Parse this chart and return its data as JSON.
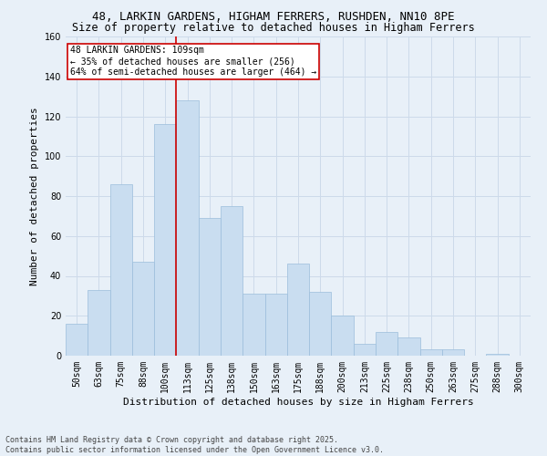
{
  "title_line1": "48, LARKIN GARDENS, HIGHAM FERRERS, RUSHDEN, NN10 8PE",
  "title_line2": "Size of property relative to detached houses in Higham Ferrers",
  "xlabel": "Distribution of detached houses by size in Higham Ferrers",
  "ylabel": "Number of detached properties",
  "categories": [
    "50sqm",
    "63sqm",
    "75sqm",
    "88sqm",
    "100sqm",
    "113sqm",
    "125sqm",
    "138sqm",
    "150sqm",
    "163sqm",
    "175sqm",
    "188sqm",
    "200sqm",
    "213sqm",
    "225sqm",
    "238sqm",
    "250sqm",
    "263sqm",
    "275sqm",
    "288sqm",
    "300sqm"
  ],
  "values": [
    16,
    33,
    86,
    47,
    116,
    128,
    69,
    75,
    31,
    31,
    46,
    32,
    20,
    6,
    12,
    9,
    3,
    3,
    0,
    1,
    0
  ],
  "bar_color": "#c9ddf0",
  "bar_edge_color": "#9bbddb",
  "grid_color": "#cddaea",
  "background_color": "#e8f0f8",
  "vline_x_index": 5,
  "vline_color": "#cc0000",
  "annotation_text": "48 LARKIN GARDENS: 109sqm\n← 35% of detached houses are smaller (256)\n64% of semi-detached houses are larger (464) →",
  "annotation_box_facecolor": "#ffffff",
  "annotation_box_edgecolor": "#cc0000",
  "ylim": [
    0,
    160
  ],
  "yticks": [
    0,
    20,
    40,
    60,
    80,
    100,
    120,
    140,
    160
  ],
  "footer_text": "Contains HM Land Registry data © Crown copyright and database right 2025.\nContains public sector information licensed under the Open Government Licence v3.0.",
  "title1_fontsize": 9,
  "title2_fontsize": 8.5,
  "axis_label_fontsize": 8,
  "tick_fontsize": 7,
  "annotation_fontsize": 7,
  "footer_fontsize": 6
}
